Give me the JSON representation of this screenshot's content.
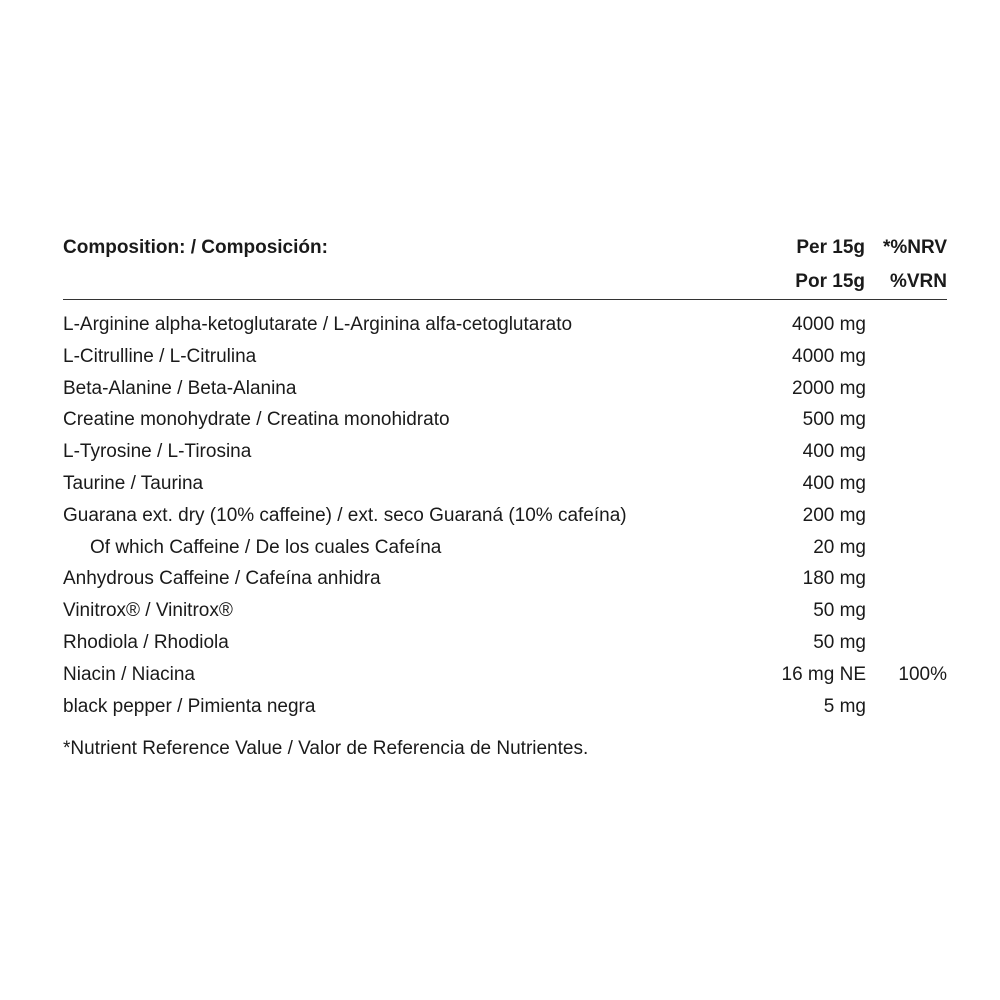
{
  "header": {
    "title": "Composition: / Composición:",
    "col1": [
      "Per 15g",
      "Por 15g"
    ],
    "col2": [
      "*%NRV",
      "%VRN"
    ]
  },
  "table": {
    "rows": [
      {
        "name": "L-Arginine alpha-ketoglutarate / L-Arginina alfa-cetoglutarato",
        "amount": "4000 mg"
      },
      {
        "name": "L-Citrulline / L-Citrulina",
        "amount": "4000 mg"
      },
      {
        "name": "Beta-Alanine / Beta-Alanina",
        "amount": "2000 mg"
      },
      {
        "name": "Creatine monohydrate / Creatina monohidrato",
        "amount": "500 mg"
      },
      {
        "name": "L-Tyrosine / L-Tirosina",
        "amount": "400 mg"
      },
      {
        "name": "Taurine / Taurina",
        "amount": "400 mg"
      },
      {
        "name": "Guarana ext. dry (10% caffeine) / ext. seco Guaraná (10% cafeína)",
        "amount": "200 mg"
      },
      {
        "name": "Of which Caffeine / De los cuales Cafeína",
        "amount": "20 mg"
      },
      {
        "name": "Anhydrous Caffeine / Cafeína anhidra",
        "amount": "180 mg"
      },
      {
        "name": "Vinitrox® / Vinitrox®",
        "amount": "50 mg"
      },
      {
        "name": "Rhodiola / Rhodiola",
        "amount": "50 mg"
      },
      {
        "name": "Niacin / Niacina",
        "amount": "16 mg NE",
        "nrv": "100%"
      },
      {
        "name": "black pepper / Pimienta negra",
        "amount": "5 mg"
      }
    ]
  },
  "footnote": "*Nutrient Reference Value / Valor de Referencia de Nutrientes."
}
